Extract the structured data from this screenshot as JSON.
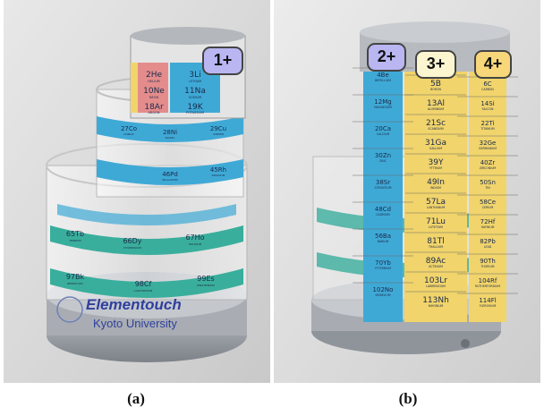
{
  "captions": {
    "a": "(a)",
    "b": "(b)"
  },
  "badges": {
    "b1": "1+",
    "b2": "2+",
    "b3": "3+",
    "b4": "4+"
  },
  "colors": {
    "blue_badge": "#b9b6f2",
    "cream_badge": "#fbf6cf",
    "orange_badge": "#f7d77a",
    "cyan_cell": "#3fa9d6",
    "pink_cell": "#e48c8c",
    "teal_cell": "#3aae9c",
    "yellow_cell": "#f1d46b"
  },
  "logo": {
    "line1": "Elementouch",
    "line2": "Kyoto University"
  },
  "panel_a": {
    "top_cells": [
      {
        "sym": "2He",
        "name": "HELIUM"
      },
      {
        "sym": "3Li",
        "name": "LITHIUM"
      },
      {
        "sym": "10Ne",
        "name": "NEON"
      },
      {
        "sym": "11Na",
        "name": "SODIUM"
      },
      {
        "sym": "18Ar",
        "name": "ARGON"
      },
      {
        "sym": "19K",
        "name": "POTASSIUM"
      }
    ],
    "mid_cells": [
      {
        "sym": "27Co",
        "name": "COBALT"
      },
      {
        "sym": "28Ni",
        "name": "NICKEL"
      },
      {
        "sym": "29Cu",
        "name": "COPPER"
      },
      {
        "sym": "46Pd",
        "name": "PALLADIUM"
      },
      {
        "sym": "45Rh",
        "name": "RHODIUM"
      }
    ],
    "low_cells": [
      {
        "sym": "65Tb",
        "name": "TERBIUM"
      },
      {
        "sym": "66Dy",
        "name": "DYSPROSIUM"
      },
      {
        "sym": "67Ho",
        "name": "HOLMIUM"
      },
      {
        "sym": "97Bk",
        "name": "BERKELIUM"
      },
      {
        "sym": "98Cf",
        "name": "CALIFORNIUM"
      },
      {
        "sym": "99Es",
        "name": "EINSTEINIUM"
      }
    ]
  },
  "panel_b": {
    "left_col": [
      {
        "sym": "4Be",
        "name": "BERYLLIUM"
      },
      {
        "sym": "12Mg",
        "name": "MAGNESIUM"
      },
      {
        "sym": "20Ca",
        "name": "CALCIUM"
      },
      {
        "sym": "30Zn",
        "name": "ZINC"
      },
      {
        "sym": "38Sr",
        "name": "STRONTIUM"
      },
      {
        "sym": "48Cd",
        "name": "CADMIUM"
      },
      {
        "sym": "56Ba",
        "name": "BARIUM"
      },
      {
        "sym": "70Yb",
        "name": "YTTERBIUM"
      },
      {
        "sym": "102No",
        "name": "NOBELIUM"
      }
    ],
    "center_col": [
      {
        "sym": "5B",
        "name": "BORON"
      },
      {
        "sym": "13Al",
        "name": "ALUMINIUM"
      },
      {
        "sym": "21Sc",
        "name": "SCANDIUM"
      },
      {
        "sym": "31Ga",
        "name": "GALLIUM"
      },
      {
        "sym": "39Y",
        "name": "YTTRIUM"
      },
      {
        "sym": "49In",
        "name": "INDIUM"
      },
      {
        "sym": "57La",
        "name": "LANTHANUM"
      },
      {
        "sym": "71Lu",
        "name": "LUTETIUM"
      },
      {
        "sym": "81Tl",
        "name": "THALLIUM"
      },
      {
        "sym": "89Ac",
        "name": "ACTINIUM"
      },
      {
        "sym": "103Lr",
        "name": "LAWRENCIUM"
      },
      {
        "sym": "113Nh",
        "name": "NIHONIUM"
      }
    ],
    "right_col": [
      {
        "sym": "6C",
        "name": "CARBON"
      },
      {
        "sym": "14Si",
        "name": "SILICON"
      },
      {
        "sym": "22Ti",
        "name": "TITANIUM"
      },
      {
        "sym": "32Ge",
        "name": "GERMANIUM"
      },
      {
        "sym": "40Zr",
        "name": "ZIRCONIUM"
      },
      {
        "sym": "50Sn",
        "name": "TIN"
      },
      {
        "sym": "58Ce",
        "name": "CERIUM"
      },
      {
        "sym": "72Hf",
        "name": "HAFNIUM"
      },
      {
        "sym": "82Pb",
        "name": "LEAD"
      },
      {
        "sym": "90Th",
        "name": "THORIUM"
      },
      {
        "sym": "104Rf",
        "name": "RUTHERFORDIUM"
      },
      {
        "sym": "114Fl",
        "name": "FLEROVIUM"
      }
    ]
  }
}
